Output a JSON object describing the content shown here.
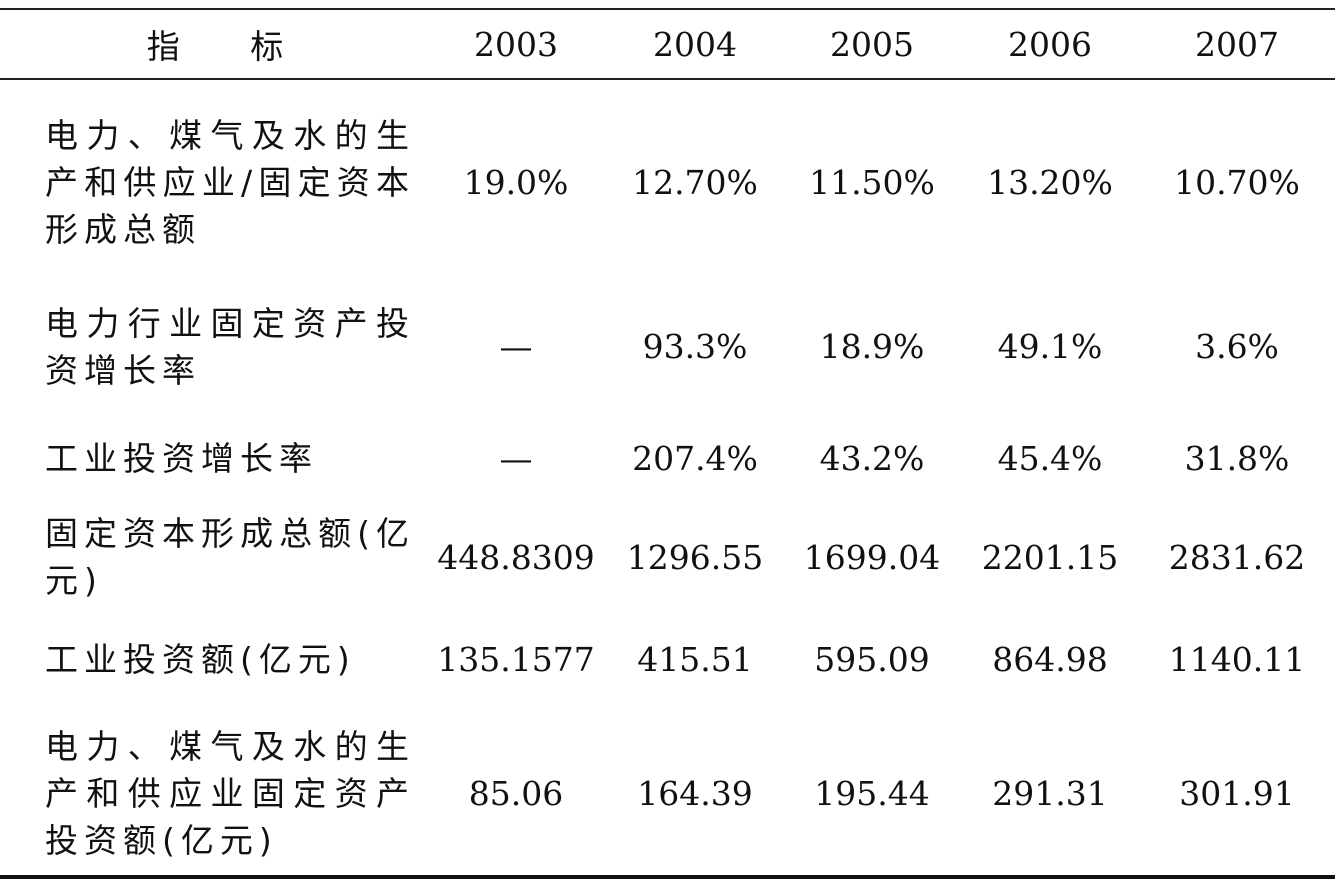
{
  "table": {
    "header": [
      "指 标",
      "2003",
      "2004",
      "2005",
      "2006",
      "2007"
    ],
    "rows": [
      [
        "电力、煤气及水的生产和供应业/固定资本形成总额",
        "19.0%",
        "12.70%",
        "11.50%",
        "13.20%",
        "10.70%"
      ],
      [
        "电力行业固定资产投资增长率",
        "—",
        "93.3%",
        "18.9%",
        "49.1%",
        "3.6%"
      ],
      [
        "工业投资增长率",
        "—",
        "207.4%",
        "43.2%",
        "45.4%",
        "31.8%"
      ],
      [
        "固定资本形成总额(亿元)",
        "448.8309",
        "1296.55",
        "1699.04",
        "2201.15",
        "2831.62"
      ],
      [
        "工业投资额(亿元)",
        "135.1577",
        "415.51",
        "595.09",
        "864.98",
        "1140.11"
      ],
      [
        "电力、煤气及水的生产和供应业固定资产投资额(亿元)",
        "85.06",
        "164.39",
        "195.44",
        "291.31",
        "301.91"
      ]
    ]
  }
}
